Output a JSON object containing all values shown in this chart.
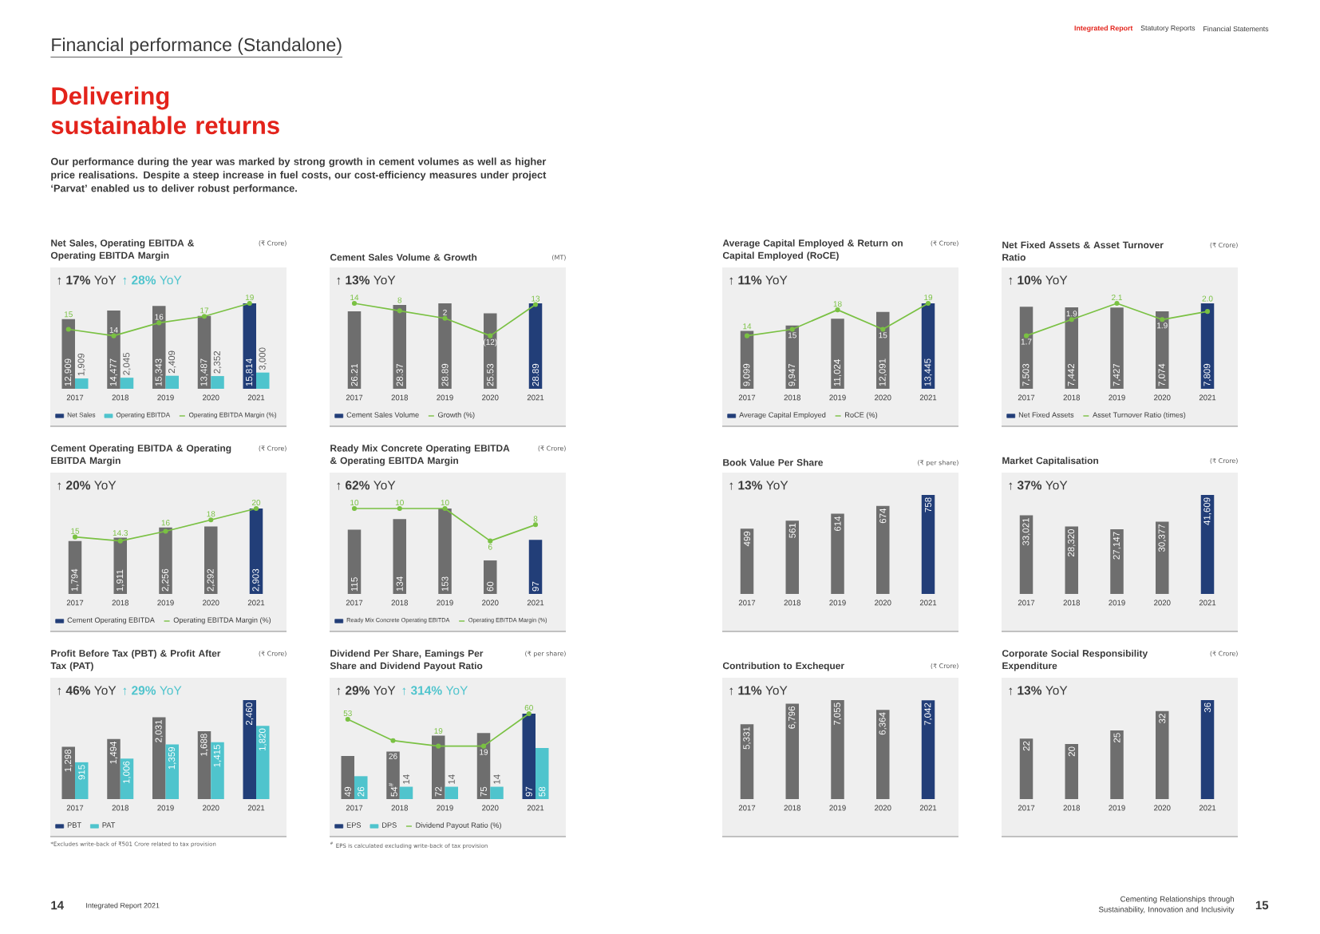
{
  "chart_data": [
    {
      "type": "other",
      "title": "Financial performance (Standalone)",
      "subtitle": "Delivering sustainable returns",
      "annotations": [
        "Our performance during the year was marked by strong growth in cement volumes as well as higher price realisations. Despite a steep increase in fuel costs, our cost-efficiency measures under project ‘Parvat’ enabled us to deliver robust performance.",
        "Integrated Report",
        "Statutory Reports",
        "Financial Statements",
        "14",
        "Integrated Report 2021",
        "Cementing Relationships through Sustainability, Innovation and Inclusivity",
        "15"
      ]
    },
    {
      "type": "bar",
      "title": "Net Sales, Operating EBITDA & Operating EBITDA Margin",
      "subtitle": "(₹ Crore)",
      "categories": [
        "2017",
        "2018",
        "2019",
        "2020",
        "2021"
      ],
      "series": [
        {
          "name": "Net Sales",
          "colors": [
            "#6e6e6e",
            "#6e6e6e",
            "#6e6e6e",
            "#6e6e6e",
            "#223e78"
          ],
          "values": [
            12909,
            14477,
            15343,
            13487,
            15814
          ],
          "value_labels": [
            "12,909",
            "14,477",
            "15,343",
            "13,487",
            "15,814"
          ]
        },
        {
          "name": "Operating EBITDA",
          "color": "#4fc4cd",
          "values": [
            1909,
            2045,
            2409,
            2352,
            3000
          ],
          "value_labels": [
            "1,909",
            "2,045",
            "2,409",
            "2,352",
            "3,000"
          ]
        },
        {
          "name": "Operating EBITDA Margin (%)",
          "type": "line",
          "axis": "y2",
          "color": "#7ac143",
          "values": [
            15,
            14,
            16,
            17,
            19
          ],
          "value_labels": [
            "15",
            "14",
            "16",
            "17",
            "19"
          ]
        }
      ],
      "marker": "circle",
      "legend": "bottom",
      "tick_labels": "x",
      "annotations": [
        "↑ **17%** YoY",
        "↑ **28%** YoY"
      ]
    },
    {
      "type": "bar",
      "title": "Cement Sales Volume & Growth",
      "subtitle": "(MT)",
      "categories": [
        "2017",
        "2018",
        "2019",
        "2020",
        "2021"
      ],
      "series": [
        {
          "name": "Cement Sales Volume",
          "colors": [
            "#6e6e6e",
            "#6e6e6e",
            "#6e6e6e",
            "#6e6e6e",
            "#223e78"
          ],
          "values": [
            26.21,
            28.37,
            28.89,
            25.53,
            28.89
          ],
          "value_labels": [
            "26.21",
            "28.37",
            "28.89",
            "25.53",
            "28.89"
          ]
        },
        {
          "name": "Growth (%)",
          "type": "line",
          "axis": "y2",
          "color": "#7ac143",
          "values": [
            14,
            8,
            2,
            -12,
            13
          ],
          "value_labels": [
            "14",
            "8",
            "2",
            "(12)",
            "13"
          ]
        }
      ],
      "marker": "circle",
      "legend": "bottom",
      "tick_labels": "x",
      "annotations": [
        "↑ **13%** YoY"
      ]
    },
    {
      "type": "bar",
      "title": "Cement Operating EBITDA & Operating EBITDA Margin",
      "subtitle": "(₹ Crore)",
      "categories": [
        "2017",
        "2018",
        "2019",
        "2020",
        "2021"
      ],
      "series": [
        {
          "name": "Cement Operating EBITDA",
          "colors": [
            "#6e6e6e",
            "#6e6e6e",
            "#6e6e6e",
            "#6e6e6e",
            "#223e78"
          ],
          "values": [
            1794,
            1911,
            2256,
            2292,
            2903
          ],
          "value_labels": [
            "1,794",
            "1,911",
            "2,256",
            "2,292",
            "2,903"
          ]
        },
        {
          "name": "Operating EBITDA Margin (%)",
          "type": "line",
          "axis": "y2",
          "color": "#7ac143",
          "values": [
            15,
            14.3,
            16,
            18,
            20
          ],
          "value_labels": [
            "15",
            "14.3",
            "16",
            "18",
            "20"
          ]
        }
      ],
      "marker": "circle",
      "legend": "bottom",
      "tick_labels": "x",
      "annotations": [
        "↑ **20%** YoY"
      ]
    },
    {
      "type": "bar",
      "title": "Ready Mix Concrete Operating EBITDA & Operating EBITDA Margin",
      "subtitle": "(₹ Crore)",
      "categories": [
        "2017",
        "2018",
        "2019",
        "2020",
        "2021"
      ],
      "series": [
        {
          "name": "Ready Mix Concrete Operating EBITDA",
          "colors": [
            "#6e6e6e",
            "#6e6e6e",
            "#6e6e6e",
            "#6e6e6e",
            "#223e78"
          ],
          "values": [
            115,
            134,
            153,
            60,
            97
          ],
          "value_labels": [
            "115",
            "134",
            "153",
            "60",
            "97"
          ]
        },
        {
          "name": "Operating EBITDA Margin (%)",
          "type": "line",
          "axis": "y2",
          "color": "#7ac143",
          "values": [
            10,
            10,
            10,
            6,
            8
          ],
          "value_labels": [
            "10",
            "10",
            "10",
            "6",
            "8"
          ]
        }
      ],
      "marker": "circle",
      "legend": "bottom",
      "tick_labels": "x",
      "annotations": [
        "↑ **62%** YoY"
      ]
    },
    {
      "type": "bar",
      "title": "Profit Before Tax (PBT) & Profit After Tax (PAT)",
      "subtitle": "(₹ Crore)",
      "categories": [
        "2017",
        "2018",
        "2019",
        "2020",
        "2021"
      ],
      "series": [
        {
          "name": "PBT",
          "colors": [
            "#6e6e6e",
            "#6e6e6e",
            "#6e6e6e",
            "#6e6e6e",
            "#223e78"
          ],
          "values": [
            1298,
            1494,
            2031,
            1688,
            2460
          ],
          "value_labels": [
            "1,298",
            "1,494",
            "2,031",
            "1,688",
            "2,460"
          ]
        },
        {
          "name": "PAT",
          "color": "#4fc4cd",
          "values": [
            915,
            1006,
            1359,
            1415,
            1820
          ],
          "value_labels": [
            "915",
            "1,006",
            "1,359",
            "1,415",
            "1,820"
          ]
        }
      ],
      "legend": "bottom",
      "tick_labels": "x",
      "annotations": [
        "↑ **46%** YoY",
        "↑ **29%** YoY",
        "*Excludes write-back of ₹501 Crore related to tax provision"
      ]
    },
    {
      "type": "bar",
      "title": "Dividend Per Share, Eamings Per Share and Dividend Payout Ratio",
      "subtitle": "(₹ per share)",
      "categories": [
        "2017",
        "2018",
        "2019",
        "2020",
        "2021"
      ],
      "series": [
        {
          "name": "EPS",
          "colors": [
            "#6e6e6e",
            "#6e6e6e",
            "#6e6e6e",
            "#6e6e6e",
            "#223e78"
          ],
          "values": [
            49,
            54,
            72,
            75,
            97
          ],
          "value_labels": [
            "49",
            "54$^{#}$",
            "72",
            "75",
            "97"
          ]
        },
        {
          "name": "DPS",
          "color": "#4fc4cd",
          "values": [
            26,
            14,
            14,
            14,
            58
          ],
          "value_labels": [
            "26",
            "14",
            "14",
            "14",
            "58"
          ]
        },
        {
          "name": "Dividend Payout Ratio (%)",
          "type": "line",
          "axis": "y2",
          "color": "#7ac143",
          "values": [
            53,
            26,
            19,
            19,
            60
          ],
          "value_labels": [
            "53",
            "26",
            "19",
            "19",
            "60"
          ]
        }
      ],
      "marker": "circle",
      "legend": "bottom",
      "tick_labels": "x",
      "annotations": [
        "↑ **29%** YoY",
        "↑ **314%** YoY",
        "$^{#}$ EPS is calculated excluding write-back of tax provision"
      ]
    },
    {
      "type": "bar",
      "title": "Average Capital Employed & Return on Capital Employed (RoCE)",
      "subtitle": "(₹ Crore)",
      "categories": [
        "2017",
        "2018",
        "2019",
        "2020",
        "2021"
      ],
      "series": [
        {
          "name": "Average Capital Employed",
          "colors": [
            "#6e6e6e",
            "#6e6e6e",
            "#6e6e6e",
            "#6e6e6e",
            "#223e78"
          ],
          "values": [
            9099,
            9947,
            11024,
            12091,
            13445
          ],
          "value_labels": [
            "9,099",
            "9,947",
            "11,024",
            "12,091",
            "13,445"
          ]
        },
        {
          "name": "RoCE (%)",
          "type": "line",
          "axis": "y2",
          "color": "#7ac143",
          "values": [
            14,
            15,
            18,
            15,
            19
          ],
          "value_labels": [
            "14",
            "15",
            "18",
            "15",
            "19"
          ]
        }
      ],
      "marker": "circle",
      "legend": "bottom",
      "tick_labels": "x",
      "annotations": [
        "↑ **11%** YoY"
      ]
    },
    {
      "type": "bar",
      "title": "Net Fixed Assets & Asset Turnover Ratio",
      "subtitle": "(₹ Crore)",
      "categories": [
        "2017",
        "2018",
        "2019",
        "2020",
        "2021"
      ],
      "series": [
        {
          "name": "Net Fixed Assets",
          "colors": [
            "#6e6e6e",
            "#6e6e6e",
            "#6e6e6e",
            "#6e6e6e",
            "#223e78"
          ],
          "values": [
            7503,
            7442,
            7427,
            7074,
            7809
          ],
          "value_labels": [
            "7,503",
            "7,442",
            "7,427",
            "7,074",
            "7,809"
          ]
        },
        {
          "name": "Asset Turnover Ratio (times)",
          "type": "line",
          "axis": "y2",
          "color": "#7ac143",
          "values": [
            1.7,
            1.9,
            2.1,
            1.9,
            2.0
          ],
          "value_labels": [
            "1.7",
            "1.9",
            "2.1",
            "1.9",
            "2.0"
          ]
        }
      ],
      "marker": "circle",
      "legend": "bottom",
      "tick_labels": "x",
      "annotations": [
        "↑ **10%** YoY"
      ]
    },
    {
      "type": "bar",
      "title": "Book Value Per Share",
      "subtitle": "(₹ per share)",
      "categories": [
        "2017",
        "2018",
        "2019",
        "2020",
        "2021"
      ],
      "values": [
        499,
        561,
        614,
        674,
        758
      ],
      "colors": [
        "#6e6e6e",
        "#6e6e6e",
        "#6e6e6e",
        "#6e6e6e",
        "#223e78"
      ],
      "value_labels": [
        "499",
        "561",
        "614",
        "674",
        "758"
      ],
      "tick_labels": "x",
      "annotations": [
        "↑ **13%** YoY"
      ]
    },
    {
      "type": "bar",
      "title": "Market Capitalisation",
      "subtitle": "(₹ Crore)",
      "categories": [
        "2017",
        "2018",
        "2019",
        "2020",
        "2021"
      ],
      "values": [
        33021,
        28320,
        27147,
        30377,
        41609
      ],
      "colors": [
        "#6e6e6e",
        "#6e6e6e",
        "#6e6e6e",
        "#6e6e6e",
        "#223e78"
      ],
      "value_labels": [
        "33,021",
        "28,320",
        "27,147",
        "30,377",
        "41,609"
      ],
      "tick_labels": "x",
      "annotations": [
        "↑ **37%** YoY"
      ]
    },
    {
      "type": "bar",
      "title": "Contribution to Exchequer",
      "subtitle": "(₹ Crore)",
      "categories": [
        "2017",
        "2018",
        "2019",
        "2020",
        "2021"
      ],
      "values": [
        5331,
        6796,
        7055,
        6364,
        7042
      ],
      "colors": [
        "#6e6e6e",
        "#6e6e6e",
        "#6e6e6e",
        "#6e6e6e",
        "#223e78"
      ],
      "value_labels": [
        "5,331",
        "6,796",
        "7,055",
        "6,364",
        "7,042"
      ],
      "tick_labels": "x",
      "annotations": [
        "↑ **11%** YoY"
      ]
    },
    {
      "type": "bar",
      "title": "Corporate Social Responsibility Expenditure",
      "subtitle": "(₹ Crore)",
      "categories": [
        "2017",
        "2018",
        "2019",
        "2020",
        "2021"
      ],
      "values": [
        22,
        20,
        25,
        32,
        36
      ],
      "colors": [
        "#6e6e6e",
        "#6e6e6e",
        "#6e6e6e",
        "#6e6e6e",
        "#223e78"
      ],
      "value_labels": [
        "22",
        "20",
        "25",
        "32",
        "36"
      ],
      "tick_labels": "x",
      "annotations": [
        "↑ **13%** YoY"
      ]
    }
  ]
}
